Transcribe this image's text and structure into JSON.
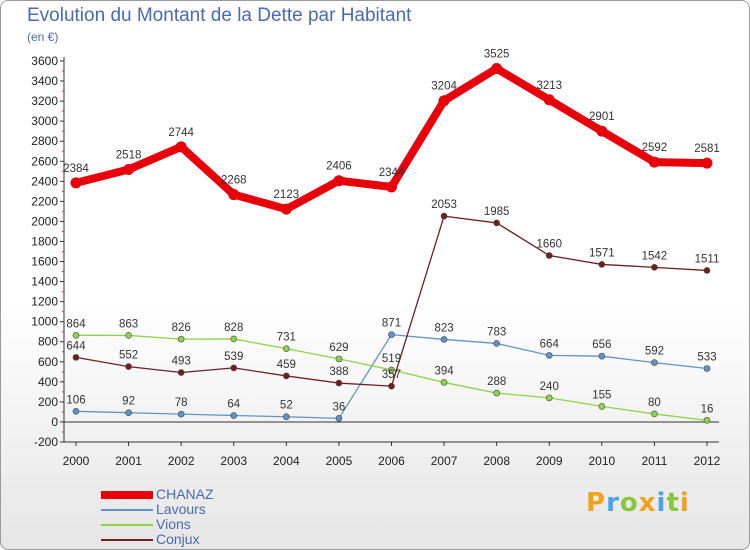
{
  "header": {
    "title": "Evolution du Montant de la Dette par Habitant",
    "unit": "(en €)"
  },
  "logo": {
    "text": "Proxiti",
    "letters": [
      {
        "ch": "P",
        "color": "#f0a21b"
      },
      {
        "ch": "r",
        "color": "#4aa6e0"
      },
      {
        "ch": "o",
        "color": "#8cc63f"
      },
      {
        "ch": "x",
        "color": "#f0a21b"
      },
      {
        "ch": "i",
        "color": "#4aa6e0"
      },
      {
        "ch": "t",
        "color": "#8cc63f"
      },
      {
        "ch": "i",
        "color": "#f0a21b"
      }
    ]
  },
  "chart_data": {
    "type": "line",
    "title": "Evolution du Montant de la Dette par Habitant",
    "subtitle": "(en €)",
    "xlabel": "",
    "ylabel": "",
    "x": [
      "2000",
      "2001",
      "2002",
      "2003",
      "2004",
      "2005",
      "2006",
      "2007",
      "2008",
      "2009",
      "2010",
      "2011",
      "2012"
    ],
    "ylim": [
      -200,
      3600
    ],
    "yticks": [
      -200,
      0,
      200,
      400,
      600,
      800,
      1000,
      1200,
      1400,
      1600,
      1800,
      2000,
      2200,
      2400,
      2600,
      2800,
      3000,
      3200,
      3400,
      3600
    ],
    "grid": false,
    "legend_position": "bottom-left",
    "series": [
      {
        "name": "CHANAZ",
        "color": "#e8000b",
        "values": [
          2384,
          2518,
          2744,
          2268,
          2123,
          2406,
          2344,
          3204,
          3525,
          3213,
          2901,
          2592,
          2581
        ]
      },
      {
        "name": "Lavours",
        "color": "#5f94c8",
        "values": [
          106,
          92,
          78,
          64,
          52,
          36,
          871,
          823,
          783,
          664,
          656,
          592,
          533
        ]
      },
      {
        "name": "Vions",
        "color": "#8dd34c",
        "values": [
          864,
          863,
          826,
          828,
          731,
          629,
          519,
          394,
          288,
          240,
          155,
          80,
          16
        ]
      },
      {
        "name": "Conjux",
        "color": "#6e1f1f",
        "values": [
          644,
          552,
          493,
          539,
          459,
          388,
          357,
          2053,
          1985,
          1660,
          1571,
          1542,
          1511
        ]
      }
    ]
  }
}
